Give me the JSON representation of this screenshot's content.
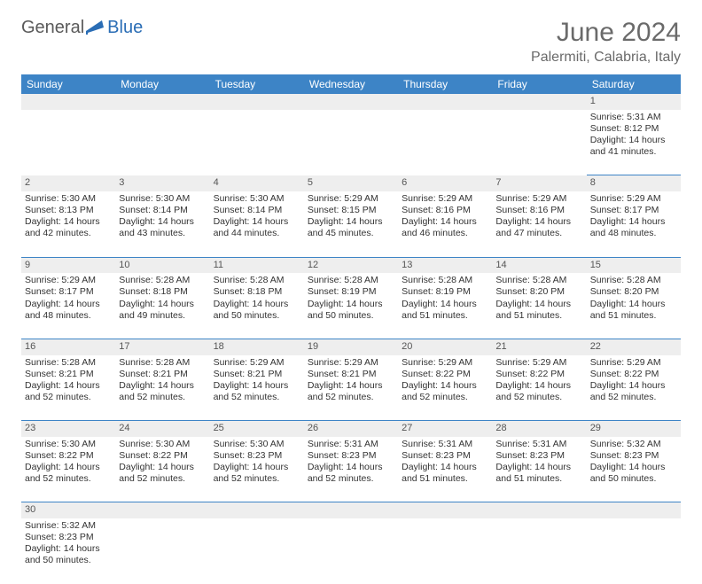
{
  "logo": {
    "text1": "General",
    "text2": "Blue"
  },
  "title": "June 2024",
  "location": "Palermiti, Calabria, Italy",
  "colors": {
    "header_bg": "#3d84c6",
    "header_text": "#ffffff",
    "daynum_bg": "#eeeeee",
    "cell_border": "#3d84c6",
    "title_color": "#6a6a6a",
    "logo_gray": "#5a5a5a",
    "logo_blue": "#2a6db5",
    "background": "#ffffff"
  },
  "weekdays": [
    "Sunday",
    "Monday",
    "Tuesday",
    "Wednesday",
    "Thursday",
    "Friday",
    "Saturday"
  ],
  "weeks": [
    [
      null,
      null,
      null,
      null,
      null,
      null,
      {
        "n": "1",
        "sr": "Sunrise: 5:31 AM",
        "ss": "Sunset: 8:12 PM",
        "dl": "Daylight: 14 hours and 41 minutes."
      }
    ],
    [
      {
        "n": "2",
        "sr": "Sunrise: 5:30 AM",
        "ss": "Sunset: 8:13 PM",
        "dl": "Daylight: 14 hours and 42 minutes."
      },
      {
        "n": "3",
        "sr": "Sunrise: 5:30 AM",
        "ss": "Sunset: 8:14 PM",
        "dl": "Daylight: 14 hours and 43 minutes."
      },
      {
        "n": "4",
        "sr": "Sunrise: 5:30 AM",
        "ss": "Sunset: 8:14 PM",
        "dl": "Daylight: 14 hours and 44 minutes."
      },
      {
        "n": "5",
        "sr": "Sunrise: 5:29 AM",
        "ss": "Sunset: 8:15 PM",
        "dl": "Daylight: 14 hours and 45 minutes."
      },
      {
        "n": "6",
        "sr": "Sunrise: 5:29 AM",
        "ss": "Sunset: 8:16 PM",
        "dl": "Daylight: 14 hours and 46 minutes."
      },
      {
        "n": "7",
        "sr": "Sunrise: 5:29 AM",
        "ss": "Sunset: 8:16 PM",
        "dl": "Daylight: 14 hours and 47 minutes."
      },
      {
        "n": "8",
        "sr": "Sunrise: 5:29 AM",
        "ss": "Sunset: 8:17 PM",
        "dl": "Daylight: 14 hours and 48 minutes."
      }
    ],
    [
      {
        "n": "9",
        "sr": "Sunrise: 5:29 AM",
        "ss": "Sunset: 8:17 PM",
        "dl": "Daylight: 14 hours and 48 minutes."
      },
      {
        "n": "10",
        "sr": "Sunrise: 5:28 AM",
        "ss": "Sunset: 8:18 PM",
        "dl": "Daylight: 14 hours and 49 minutes."
      },
      {
        "n": "11",
        "sr": "Sunrise: 5:28 AM",
        "ss": "Sunset: 8:18 PM",
        "dl": "Daylight: 14 hours and 50 minutes."
      },
      {
        "n": "12",
        "sr": "Sunrise: 5:28 AM",
        "ss": "Sunset: 8:19 PM",
        "dl": "Daylight: 14 hours and 50 minutes."
      },
      {
        "n": "13",
        "sr": "Sunrise: 5:28 AM",
        "ss": "Sunset: 8:19 PM",
        "dl": "Daylight: 14 hours and 51 minutes."
      },
      {
        "n": "14",
        "sr": "Sunrise: 5:28 AM",
        "ss": "Sunset: 8:20 PM",
        "dl": "Daylight: 14 hours and 51 minutes."
      },
      {
        "n": "15",
        "sr": "Sunrise: 5:28 AM",
        "ss": "Sunset: 8:20 PM",
        "dl": "Daylight: 14 hours and 51 minutes."
      }
    ],
    [
      {
        "n": "16",
        "sr": "Sunrise: 5:28 AM",
        "ss": "Sunset: 8:21 PM",
        "dl": "Daylight: 14 hours and 52 minutes."
      },
      {
        "n": "17",
        "sr": "Sunrise: 5:28 AM",
        "ss": "Sunset: 8:21 PM",
        "dl": "Daylight: 14 hours and 52 minutes."
      },
      {
        "n": "18",
        "sr": "Sunrise: 5:29 AM",
        "ss": "Sunset: 8:21 PM",
        "dl": "Daylight: 14 hours and 52 minutes."
      },
      {
        "n": "19",
        "sr": "Sunrise: 5:29 AM",
        "ss": "Sunset: 8:21 PM",
        "dl": "Daylight: 14 hours and 52 minutes."
      },
      {
        "n": "20",
        "sr": "Sunrise: 5:29 AM",
        "ss": "Sunset: 8:22 PM",
        "dl": "Daylight: 14 hours and 52 minutes."
      },
      {
        "n": "21",
        "sr": "Sunrise: 5:29 AM",
        "ss": "Sunset: 8:22 PM",
        "dl": "Daylight: 14 hours and 52 minutes."
      },
      {
        "n": "22",
        "sr": "Sunrise: 5:29 AM",
        "ss": "Sunset: 8:22 PM",
        "dl": "Daylight: 14 hours and 52 minutes."
      }
    ],
    [
      {
        "n": "23",
        "sr": "Sunrise: 5:30 AM",
        "ss": "Sunset: 8:22 PM",
        "dl": "Daylight: 14 hours and 52 minutes."
      },
      {
        "n": "24",
        "sr": "Sunrise: 5:30 AM",
        "ss": "Sunset: 8:22 PM",
        "dl": "Daylight: 14 hours and 52 minutes."
      },
      {
        "n": "25",
        "sr": "Sunrise: 5:30 AM",
        "ss": "Sunset: 8:23 PM",
        "dl": "Daylight: 14 hours and 52 minutes."
      },
      {
        "n": "26",
        "sr": "Sunrise: 5:31 AM",
        "ss": "Sunset: 8:23 PM",
        "dl": "Daylight: 14 hours and 52 minutes."
      },
      {
        "n": "27",
        "sr": "Sunrise: 5:31 AM",
        "ss": "Sunset: 8:23 PM",
        "dl": "Daylight: 14 hours and 51 minutes."
      },
      {
        "n": "28",
        "sr": "Sunrise: 5:31 AM",
        "ss": "Sunset: 8:23 PM",
        "dl": "Daylight: 14 hours and 51 minutes."
      },
      {
        "n": "29",
        "sr": "Sunrise: 5:32 AM",
        "ss": "Sunset: 8:23 PM",
        "dl": "Daylight: 14 hours and 50 minutes."
      }
    ],
    [
      {
        "n": "30",
        "sr": "Sunrise: 5:32 AM",
        "ss": "Sunset: 8:23 PM",
        "dl": "Daylight: 14 hours and 50 minutes."
      },
      null,
      null,
      null,
      null,
      null,
      null
    ]
  ]
}
